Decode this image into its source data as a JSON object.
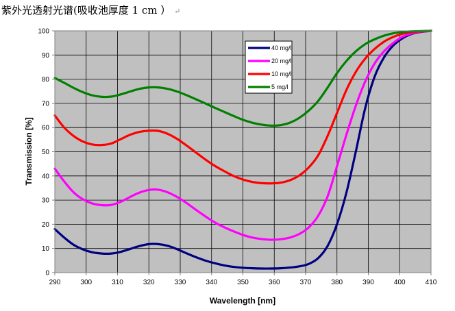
{
  "caption": {
    "text": "紫外光透射光谱(吸收池厚度 1 cm  ）",
    "mark": "↵"
  },
  "chart_data": {
    "type": "line",
    "title": "",
    "xlabel": "Wavelength [nm]",
    "ylabel": "Transmission [%]",
    "xlim": [
      290,
      410
    ],
    "ylim": [
      0,
      100
    ],
    "xticks": [
      290,
      300,
      310,
      320,
      330,
      340,
      350,
      360,
      370,
      380,
      390,
      400,
      410
    ],
    "yticks": [
      0,
      10,
      20,
      30,
      40,
      50,
      60,
      70,
      80,
      90,
      100
    ],
    "grid": true,
    "legend_position": "top-center",
    "x": [
      290,
      293,
      296,
      299,
      302,
      305,
      308,
      311,
      314,
      317,
      320,
      323,
      326,
      329,
      332,
      335,
      338,
      341,
      344,
      347,
      350,
      353,
      356,
      359,
      362,
      365,
      368,
      371,
      374,
      377,
      380,
      383,
      386,
      389,
      392,
      395,
      398,
      401,
      404,
      407,
      410
    ],
    "series": [
      {
        "name": "40 mg/l",
        "color": "#000080",
        "values": [
          18,
          14.5,
          11.5,
          9.6,
          8.4,
          7.9,
          7.9,
          8.6,
          9.8,
          11,
          11.8,
          11.8,
          11.1,
          9.7,
          8.0,
          6.4,
          5.0,
          3.9,
          3.0,
          2.4,
          2.0,
          1.8,
          1.7,
          1.7,
          1.8,
          2.1,
          2.6,
          3.6,
          6.0,
          11.0,
          20.0,
          33.0,
          50.0,
          68.0,
          81.0,
          89.0,
          94.0,
          97.0,
          98.8,
          99.6,
          100
        ]
      },
      {
        "name": "20 mg/l",
        "color": "#FF00FF",
        "values": [
          43,
          37.7,
          33.2,
          30.3,
          28.6,
          27.9,
          28.0,
          29.3,
          31.3,
          33.1,
          34.2,
          34.3,
          33.2,
          31.3,
          28.8,
          26.0,
          23.3,
          20.8,
          18.8,
          17.1,
          15.6,
          14.5,
          13.9,
          13.6,
          13.8,
          14.5,
          16.0,
          18.7,
          23.5,
          31.5,
          44.0,
          57.0,
          69.0,
          79.0,
          86.5,
          91.5,
          95.0,
          97.6,
          99.0,
          99.7,
          100
        ]
      },
      {
        "name": "10 mg/l",
        "color": "#FF0000",
        "values": [
          65,
          60.0,
          56.5,
          54.2,
          53.0,
          52.8,
          53.4,
          55.2,
          57.0,
          58.2,
          58.7,
          58.6,
          57.4,
          55.3,
          52.6,
          49.7,
          46.8,
          44.2,
          42.0,
          40.0,
          38.5,
          37.5,
          37.0,
          36.9,
          37.2,
          38.2,
          40.2,
          43.5,
          48.5,
          56.5,
          66.0,
          75.5,
          83.0,
          88.5,
          92.5,
          95.5,
          97.5,
          98.8,
          99.5,
          99.8,
          100
        ]
      },
      {
        "name": "5 mg/l",
        "color": "#008000",
        "values": [
          80.5,
          78.5,
          76.4,
          74.6,
          73.3,
          72.7,
          72.8,
          73.7,
          74.9,
          76.0,
          76.6,
          76.6,
          76.0,
          74.9,
          73.4,
          71.7,
          70.0,
          68.2,
          66.5,
          64.8,
          63.2,
          62.0,
          61.2,
          60.8,
          61.0,
          62.0,
          64.0,
          67.0,
          71.0,
          76.5,
          82.5,
          87.5,
          91.5,
          94.5,
          96.5,
          98.0,
          99.0,
          99.5,
          99.8,
          99.9,
          100
        ]
      }
    ]
  }
}
